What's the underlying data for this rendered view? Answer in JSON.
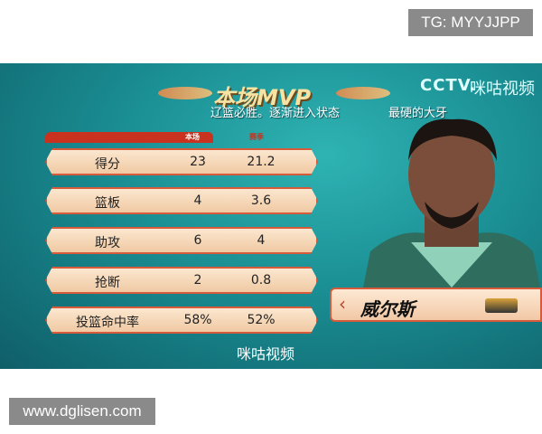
{
  "watermark_top": "TG: MYYJJPP",
  "watermark_bottom": "www.dglisen.com",
  "title": "本场MVP",
  "subtitle": "辽篮必胜。逐渐进入状态",
  "subtitle2": "最硬的大牙",
  "broadcaster": "CCTV.",
  "partner": "咪咕视频",
  "footer_logo": "咪咕视频",
  "columns": [
    "本场",
    "赛季"
  ],
  "stats": [
    {
      "label": "得分",
      "game": "23",
      "season": "21.2"
    },
    {
      "label": "篮板",
      "game": "4",
      "season": "3.6"
    },
    {
      "label": "助攻",
      "game": "6",
      "season": "4"
    },
    {
      "label": "抢断",
      "game": "2",
      "season": "0.8"
    },
    {
      "label": "投篮命中率",
      "game": "58%",
      "season": "52%"
    }
  ],
  "player": {
    "name": "威尔斯"
  },
  "colors": {
    "bg": "#1a8e93",
    "accent": "#d75a3a",
    "row": "#f6dbbd"
  }
}
